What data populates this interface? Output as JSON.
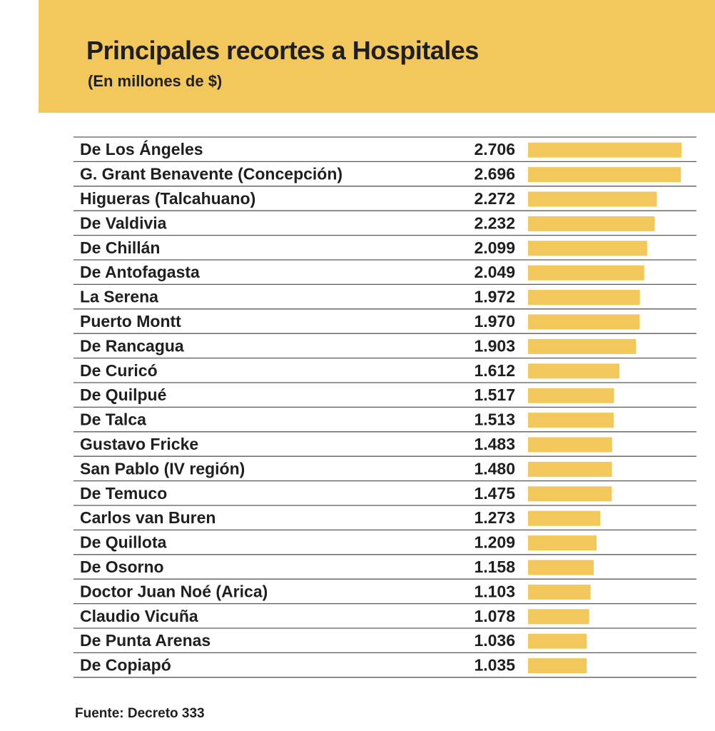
{
  "chart_data": {
    "type": "bar",
    "orientation": "horizontal",
    "title": "Principales recortes a Hospitales",
    "subtitle": "(En millones de $)",
    "categories": [
      "De Los Ángeles",
      "G. Grant Benavente  (Concepción)",
      "Higueras (Talcahuano)",
      "De Valdivia",
      "De Chillán",
      "De Antofagasta",
      "La Serena",
      "Puerto Montt",
      "De Rancagua",
      "De Curicó",
      "De Quilpué",
      "De Talca",
      "Gustavo Fricke",
      "San Pablo (IV región)",
      "De Temuco",
      "Carlos van Buren",
      "De Quillota",
      "De Osorno",
      "Doctor Juan Noé (Arica)",
      "Claudio Vicuña",
      "De Punta Arenas",
      "De Copiapó"
    ],
    "values": [
      2706,
      2696,
      2272,
      2232,
      2099,
      2049,
      1972,
      1970,
      1903,
      1612,
      1517,
      1513,
      1483,
      1480,
      1475,
      1273,
      1209,
      1158,
      1103,
      1078,
      1036,
      1035
    ],
    "value_labels": [
      "2.706",
      "2.696",
      "2.272",
      "2.232",
      "2.099",
      "2.049",
      "1.972",
      "1.970",
      "1.903",
      "1.612",
      "1.517",
      "1.513",
      "1.483",
      "1.480",
      "1.475",
      "1.273",
      "1.209",
      "1.158",
      "1.103",
      "1.078",
      "1.036",
      "1.035"
    ],
    "source": "Fuente: Decreto 333",
    "grid": false,
    "legend": "none"
  },
  "colors": {
    "accent": "#f2c75c",
    "bar": "#f2c75c",
    "text": "#1f1f1f",
    "rule": "#5a5a5a"
  }
}
